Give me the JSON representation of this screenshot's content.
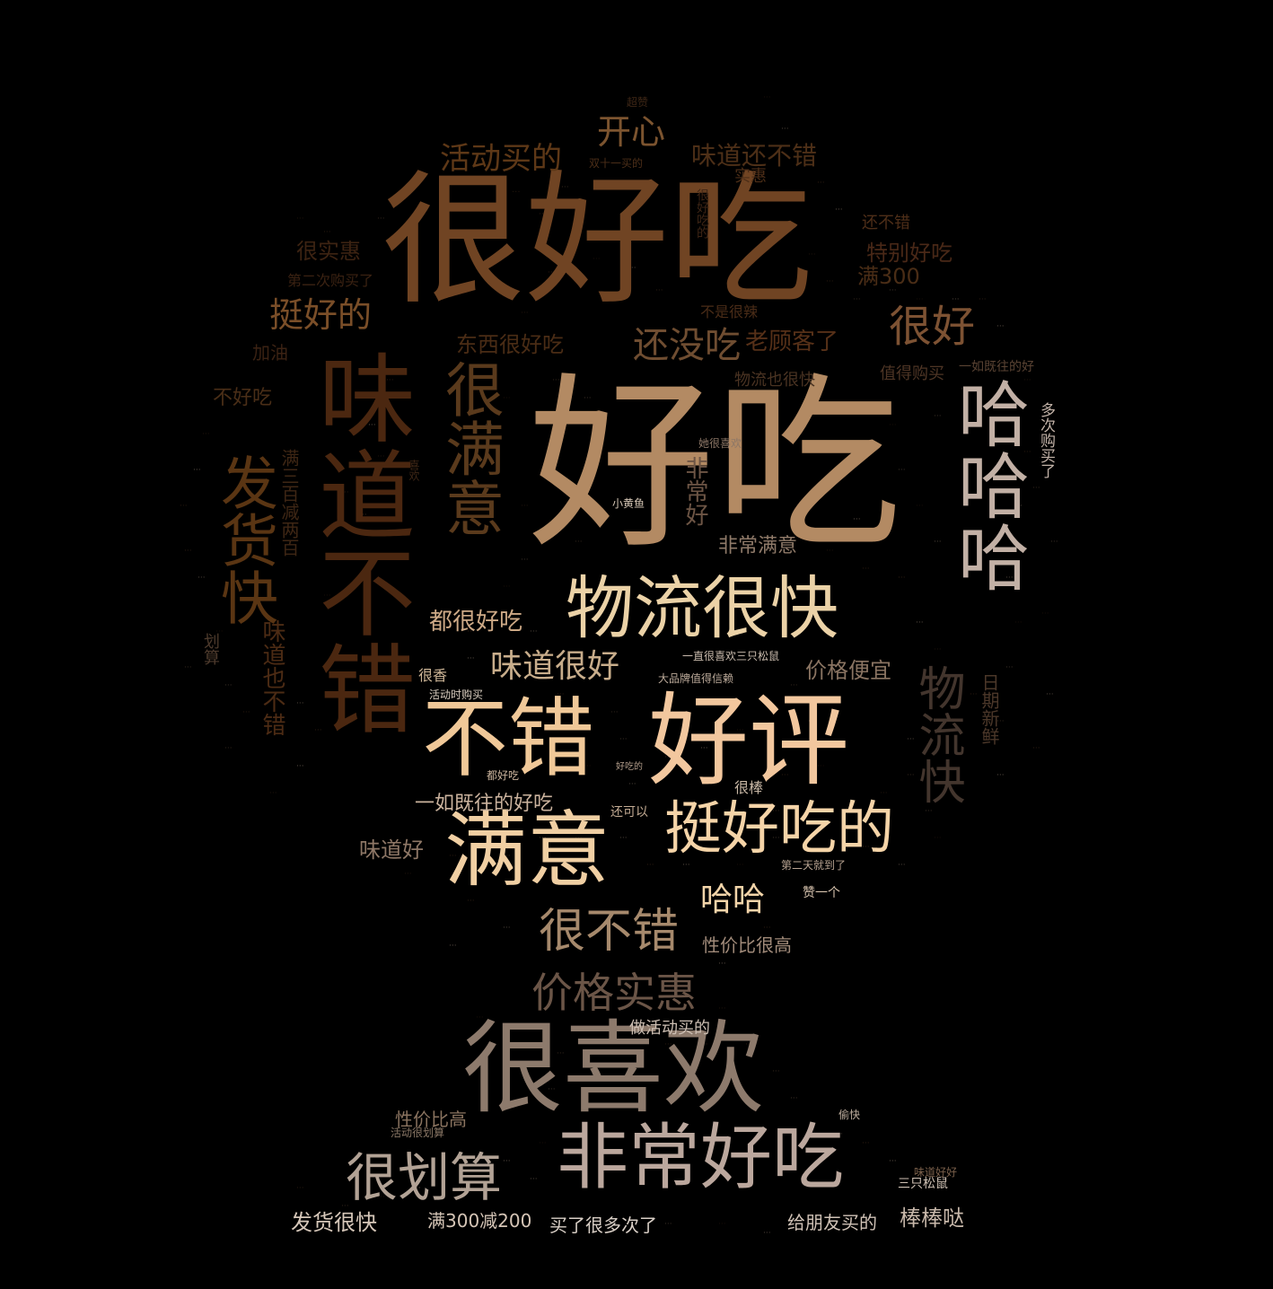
{
  "words": [
    {
      "text": "好吃",
      "color": "#b38a63"
    },
    {
      "text": "很好吃",
      "color": "#704423"
    },
    {
      "text": "味道不错",
      "color": "#4b2710"
    },
    {
      "text": "不错",
      "color": "#f0c898"
    },
    {
      "text": "好评",
      "color": "#f2c79e"
    },
    {
      "text": "很喜欢",
      "color": "#8d7a6c"
    },
    {
      "text": "满意",
      "color": "#f0cfa3"
    },
    {
      "text": "非常好吃",
      "color": "#bba79d"
    },
    {
      "text": "物流很快",
      "color": "#ebd2a7"
    },
    {
      "text": "哈哈哈",
      "color": "#c2b0a5"
    },
    {
      "text": "很满意",
      "color": "#5a3a1c"
    },
    {
      "text": "挺好吃的",
      "color": "#f5d4a8"
    },
    {
      "text": "发货快",
      "color": "#5a3513"
    },
    {
      "text": "很划算",
      "color": "#b2a295"
    },
    {
      "text": "很不错",
      "color": "#a6896c"
    },
    {
      "text": "价格实惠",
      "color": "#6b5547"
    },
    {
      "text": "很好",
      "color": "#7d5233"
    },
    {
      "text": "物流快",
      "color": "#43352d"
    },
    {
      "text": "还没吃",
      "color": "#6f4d31"
    },
    {
      "text": "挺好的",
      "color": "#7a4e28"
    },
    {
      "text": "开心",
      "color": "#7c542f"
    },
    {
      "text": "活动买的",
      "color": "#5e3817"
    },
    {
      "text": "味道还不错",
      "color": "#4d2f17"
    },
    {
      "text": "味道很好",
      "color": "#c8ad8b"
    },
    {
      "text": "都很好吃",
      "color": "#cda986"
    },
    {
      "text": "老顾客了",
      "color": "#563018"
    },
    {
      "text": "东西很好吃",
      "color": "#4a2c15"
    },
    {
      "text": "特别好吃",
      "color": "#492817"
    },
    {
      "text": "满300",
      "color": "#4a2d16"
    },
    {
      "text": "很实惠",
      "color": "#3d2312"
    },
    {
      "text": "味道也不错",
      "color": "#4c2b14"
    },
    {
      "text": "非常满意",
      "color": "#8f7a69"
    },
    {
      "text": "价格便宜",
      "color": "#8a7462"
    },
    {
      "text": "哈哈",
      "color": "#f2d4a9"
    },
    {
      "text": "一如既往的好吃",
      "color": "#cbb39e"
    },
    {
      "text": "味道好",
      "color": "#8e7766"
    },
    {
      "text": "性价比很高",
      "color": "#a08a79"
    },
    {
      "text": "发货很快",
      "color": "#d6c7b9"
    },
    {
      "text": "满300减200",
      "color": "#d5c5b6"
    },
    {
      "text": "买了很多次了",
      "color": "#d9cfc6"
    },
    {
      "text": "给朋友买的",
      "color": "#d0c2b6"
    },
    {
      "text": "棒棒哒",
      "color": "#c8b8aa"
    },
    {
      "text": "性价比高",
      "color": "#8a735f"
    },
    {
      "text": "做活动买的",
      "color": "#cdbfb3"
    },
    {
      "text": "非常好",
      "color": "#6d5545"
    },
    {
      "text": "满三百减两百",
      "color": "#3e2614"
    },
    {
      "text": "日期新鲜",
      "color": "#4b3729"
    },
    {
      "text": "多次购买了",
      "color": "#c2b2a7"
    },
    {
      "text": "不好吃",
      "color": "#4a2e17"
    },
    {
      "text": "物流也很快",
      "color": "#4a3322"
    },
    {
      "text": "还不错",
      "color": "#4e2e18"
    },
    {
      "text": "加油",
      "color": "#3b2213"
    },
    {
      "text": "值得购买",
      "color": "#4e3525"
    },
    {
      "text": "一如既往的好",
      "color": "#5a4333"
    },
    {
      "text": "划算",
      "color": "#4d3a2c"
    },
    {
      "text": "很香",
      "color": "#cfb798"
    },
    {
      "text": "活动时购买",
      "color": "#d9cdbf"
    },
    {
      "text": "很棒",
      "color": "#c9b8a6"
    },
    {
      "text": "赞一个",
      "color": "#d6c2ad"
    },
    {
      "text": "还可以",
      "color": "#c3ab93"
    },
    {
      "text": "实惠",
      "color": "#4b2d17"
    },
    {
      "text": "超赞",
      "color": "#3f2716"
    },
    {
      "text": "活动很划算",
      "color": "#8a7766"
    },
    {
      "text": "三只松鼠",
      "color": "#cfc1b4"
    },
    {
      "text": "味道好好",
      "color": "#7a5f4a"
    },
    {
      "text": "小黄鱼",
      "color": "#d6c7b6"
    },
    {
      "text": "都好吃",
      "color": "#cab39c"
    },
    {
      "text": "第二次购买了",
      "color": "#3b2212"
    },
    {
      "text": "不是很辣",
      "color": "#4a2c17"
    },
    {
      "text": "很好吃的",
      "color": "#3e2515"
    },
    {
      "text": "她很喜欢",
      "color": "#8d7767"
    },
    {
      "text": "双十一买的",
      "color": "#4c2e18"
    },
    {
      "text": "一直很喜欢三只松鼠",
      "color": "#cbbcae"
    },
    {
      "text": "大品牌值得信赖",
      "color": "#bcaa9a"
    },
    {
      "text": "第二天就到了",
      "color": "#b8a391"
    },
    {
      "text": "喜欢",
      "color": "#3f2716"
    },
    {
      "text": "偷快",
      "color": "#bfae9e"
    },
    {
      "text": "好吃的",
      "color": "#b49e8b"
    }
  ]
}
